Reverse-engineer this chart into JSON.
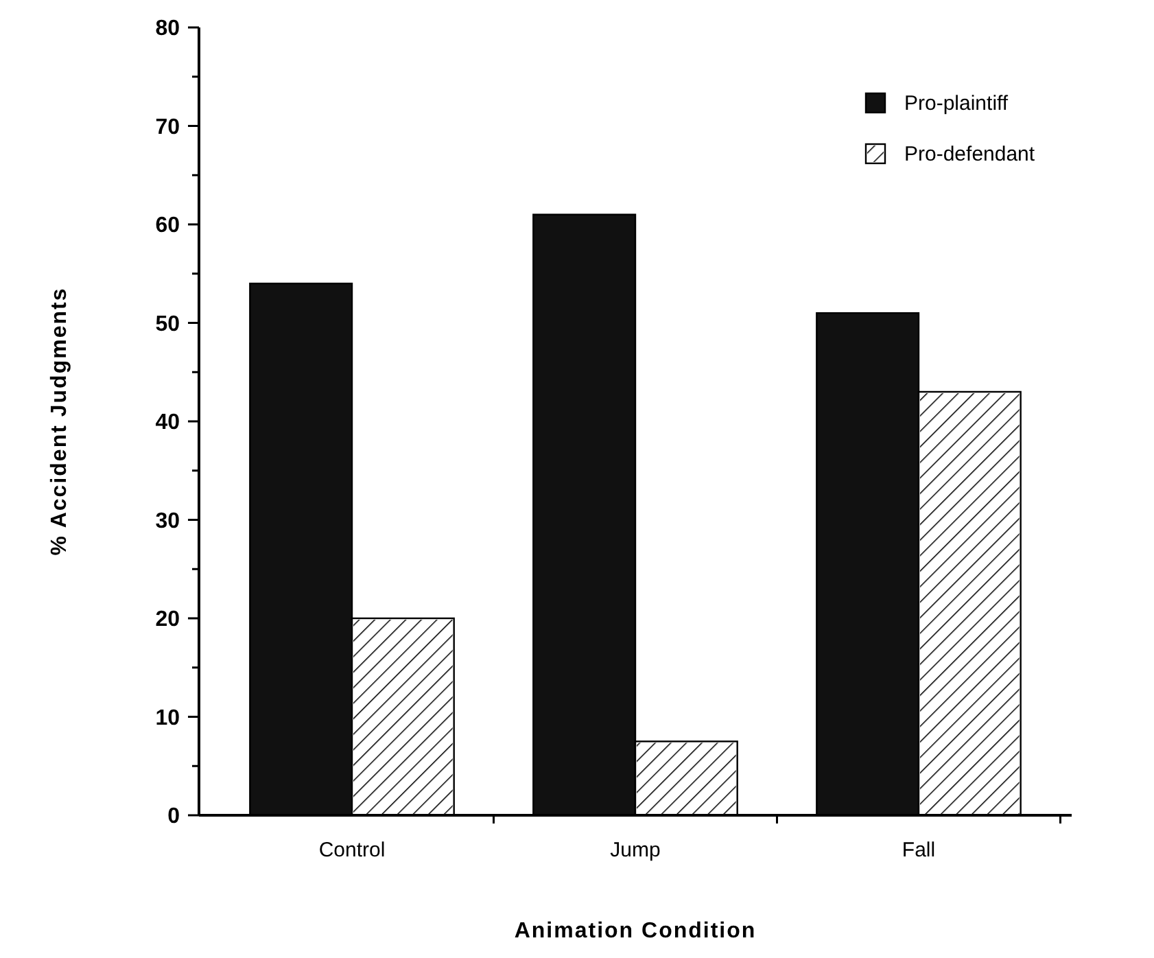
{
  "chart_data": {
    "type": "bar",
    "xlabel": "Animation Condition",
    "ylabel": "% Accident Judgments",
    "categories": [
      "Control",
      "Jump",
      "Fall"
    ],
    "series": [
      {
        "name": "Pro-plaintiff",
        "color": "#111111",
        "values": [
          54,
          61,
          51
        ]
      },
      {
        "name": "Pro-defendant",
        "color": "#ffffff",
        "values": [
          20,
          7.5,
          43
        ]
      }
    ],
    "ylim": [
      0,
      80
    ],
    "yticks": [
      0,
      {
        "value": 5,
        "label": null
      },
      10,
      {
        "value": 15,
        "label": null
      },
      20,
      {
        "value": 25,
        "label": null
      },
      30,
      {
        "value": 35,
        "label": null
      },
      40,
      {
        "value": 45,
        "label": null
      },
      50,
      {
        "value": 55,
        "label": null
      },
      60,
      {
        "value": 65,
        "label": null
      },
      70,
      {
        "value": 75,
        "label": null
      },
      80
    ],
    "legend": "top right"
  }
}
